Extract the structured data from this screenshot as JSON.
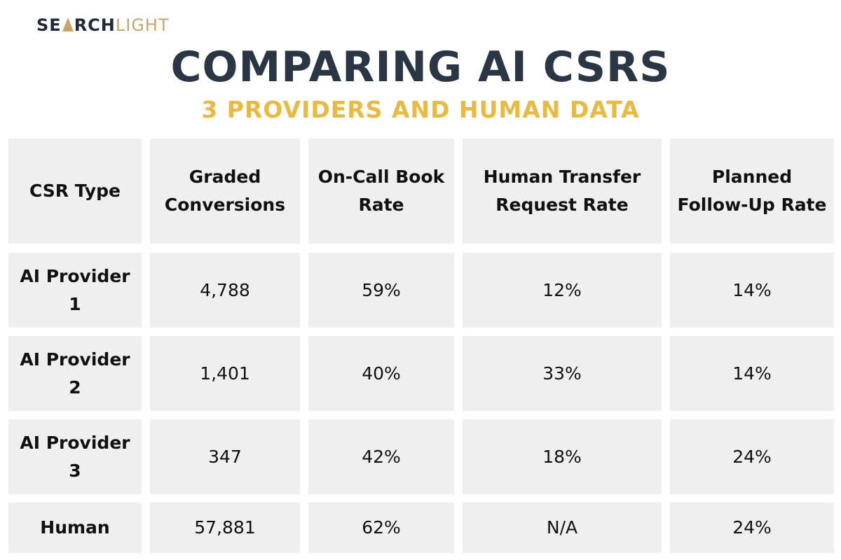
{
  "logo": {
    "part1": "SE",
    "part2": "RCH",
    "part3": "LIGHT",
    "cone_icon": "spotlight-cone-icon"
  },
  "title": "COMPARING AI CSRS",
  "subtitle": "3 PROVIDERS AND HUMAN DATA",
  "colors": {
    "title": "#2b3645",
    "subtitle": "#e9b940",
    "cell_bg": "#efefef",
    "logo_dark": "#1e2a38",
    "logo_gold": "#c9a46b"
  },
  "chart_data": {
    "type": "table",
    "title": "COMPARING AI CSRS",
    "subtitle": "3 PROVIDERS AND HUMAN DATA",
    "columns": [
      "CSR Type",
      "Graded Conversions",
      "On-Call Book Rate",
      "Human Transfer Request Rate",
      "Planned Follow-Up Rate"
    ],
    "rows": [
      {
        "label": "AI Provider 1",
        "values": [
          "4,788",
          "59%",
          "12%",
          "14%"
        ]
      },
      {
        "label": "AI Provider 2",
        "values": [
          "1,401",
          "40%",
          "33%",
          "14%"
        ]
      },
      {
        "label": "AI Provider 3",
        "values": [
          "347",
          "42%",
          "18%",
          "24%"
        ]
      },
      {
        "label": "Human",
        "values": [
          "57,881",
          "62%",
          "N/A",
          "24%"
        ]
      }
    ]
  }
}
